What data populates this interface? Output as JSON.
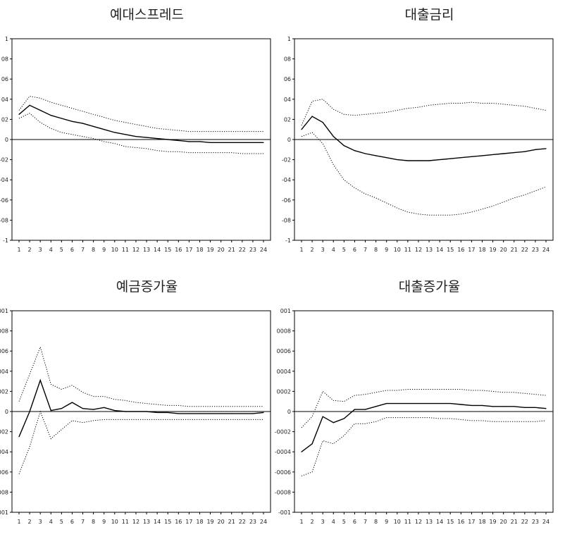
{
  "chart_data": [
    {
      "type": "line",
      "title": "예대스프레드",
      "x": [
        1,
        2,
        3,
        4,
        5,
        6,
        7,
        8,
        9,
        10,
        11,
        12,
        13,
        14,
        15,
        16,
        17,
        18,
        19,
        20,
        21,
        22,
        23,
        24
      ],
      "ylim": [
        -1,
        1
      ],
      "yticks": [
        "1",
        "0.8",
        "0.6",
        "0.4",
        "0.2",
        "0",
        "-0.2",
        "-0.4",
        "-0.6",
        "-0.8",
        "-1"
      ],
      "yticks_display": [
        "1",
        "08",
        "06",
        "04",
        "02",
        "0",
        "-02",
        "-04",
        "-06",
        "-08",
        "-1"
      ],
      "xticks": [
        "1",
        "2",
        "3",
        "4",
        "5",
        "6",
        "7",
        "8",
        "9",
        "10",
        "11",
        "12",
        "13",
        "14",
        "15",
        "16",
        "17",
        "18",
        "19",
        "20",
        "21",
        "22",
        "23",
        "24"
      ],
      "series": [
        {
          "style": "solid",
          "values": [
            0.25,
            0.34,
            0.29,
            0.24,
            0.21,
            0.18,
            0.16,
            0.13,
            0.1,
            0.07,
            0.05,
            0.03,
            0.02,
            0.01,
            0.0,
            -0.01,
            -0.02,
            -0.02,
            -0.03,
            -0.03,
            -0.03,
            -0.03,
            -0.03,
            -0.03
          ]
        },
        {
          "style": "dotted",
          "values": [
            0.29,
            0.43,
            0.41,
            0.37,
            0.34,
            0.31,
            0.28,
            0.25,
            0.22,
            0.19,
            0.17,
            0.15,
            0.13,
            0.11,
            0.1,
            0.09,
            0.08,
            0.08,
            0.08,
            0.08,
            0.08,
            0.08,
            0.08,
            0.08
          ]
        },
        {
          "style": "dotted",
          "values": [
            0.21,
            0.26,
            0.17,
            0.11,
            0.07,
            0.05,
            0.03,
            0.01,
            -0.02,
            -0.04,
            -0.07,
            -0.08,
            -0.09,
            -0.11,
            -0.12,
            -0.12,
            -0.13,
            -0.13,
            -0.13,
            -0.13,
            -0.13,
            -0.14,
            -0.14,
            -0.14
          ]
        }
      ]
    },
    {
      "type": "line",
      "title": "대출금리",
      "x": [
        1,
        2,
        3,
        4,
        5,
        6,
        7,
        8,
        9,
        10,
        11,
        12,
        13,
        14,
        15,
        16,
        17,
        18,
        19,
        20,
        21,
        22,
        23,
        24
      ],
      "ylim": [
        -1,
        1
      ],
      "yticks": [
        "1",
        "0.8",
        "0.6",
        "0.4",
        "0.2",
        "0",
        "-0.2",
        "-0.4",
        "-0.6",
        "-0.8",
        "-1"
      ],
      "yticks_display": [
        "1",
        "08",
        "06",
        "04",
        "02",
        "0",
        "-02",
        "-04",
        "-06",
        "-08",
        "-1"
      ],
      "xticks": [
        "1",
        "2",
        "3",
        "4",
        "5",
        "6",
        "7",
        "8",
        "9",
        "10",
        "11",
        "12",
        "13",
        "14",
        "15",
        "16",
        "17",
        "18",
        "19",
        "20",
        "21",
        "22",
        "23",
        "24"
      ],
      "series": [
        {
          "style": "solid",
          "values": [
            0.1,
            0.23,
            0.17,
            0.03,
            -0.06,
            -0.11,
            -0.14,
            -0.16,
            -0.18,
            -0.2,
            -0.21,
            -0.21,
            -0.21,
            -0.2,
            -0.19,
            -0.18,
            -0.17,
            -0.16,
            -0.15,
            -0.14,
            -0.13,
            -0.12,
            -0.1,
            -0.09
          ]
        },
        {
          "style": "dotted",
          "values": [
            0.14,
            0.38,
            0.4,
            0.3,
            0.25,
            0.24,
            0.25,
            0.26,
            0.27,
            0.29,
            0.31,
            0.32,
            0.34,
            0.35,
            0.36,
            0.36,
            0.37,
            0.36,
            0.36,
            0.35,
            0.34,
            0.33,
            0.31,
            0.29
          ]
        },
        {
          "style": "dotted",
          "values": [
            0.03,
            0.07,
            -0.04,
            -0.25,
            -0.4,
            -0.48,
            -0.54,
            -0.58,
            -0.63,
            -0.68,
            -0.72,
            -0.74,
            -0.75,
            -0.75,
            -0.75,
            -0.74,
            -0.72,
            -0.69,
            -0.66,
            -0.62,
            -0.58,
            -0.55,
            -0.51,
            -0.47
          ]
        }
      ]
    },
    {
      "type": "line",
      "title": "예금증가율",
      "x": [
        1,
        2,
        3,
        4,
        5,
        6,
        7,
        8,
        9,
        10,
        11,
        12,
        13,
        14,
        15,
        16,
        17,
        18,
        19,
        20,
        21,
        22,
        23,
        24
      ],
      "ylim": [
        -0.01,
        0.01
      ],
      "yticks": [
        "0.01",
        "0.008",
        "0.006",
        "0.004",
        "0.002",
        "0",
        "-0.002",
        "-0.004",
        "-0.006",
        "-0.008",
        "-0.01"
      ],
      "yticks_display": [
        "001",
        "0008",
        "0006",
        "0004",
        "0002",
        "0",
        "-0002",
        "-0004",
        "-0006",
        "-0008",
        "-001"
      ],
      "xticks": [
        "1",
        "2",
        "3",
        "4",
        "5",
        "6",
        "7",
        "8",
        "9",
        "10",
        "11",
        "12",
        "13",
        "14",
        "15",
        "16",
        "17",
        "18",
        "19",
        "20",
        "21",
        "22",
        "23",
        "24"
      ],
      "series": [
        {
          "style": "solid",
          "values": [
            -0.0025,
            0.0,
            0.0031,
            0.0001,
            0.0003,
            0.0009,
            0.0003,
            0.0002,
            0.0004,
            0.0001,
            0.0,
            0.0,
            0.0,
            -0.0001,
            -0.0001,
            -0.0002,
            -0.0002,
            -0.0002,
            -0.0002,
            -0.0002,
            -0.0002,
            -0.0002,
            -0.0002,
            -0.0001
          ]
        },
        {
          "style": "dotted",
          "values": [
            0.001,
            0.0037,
            0.0064,
            0.0027,
            0.0022,
            0.0026,
            0.0019,
            0.0015,
            0.0015,
            0.0012,
            0.0011,
            0.0009,
            0.0008,
            0.0007,
            0.0006,
            0.0006,
            0.0005,
            0.0005,
            0.0005,
            0.0005,
            0.0005,
            0.0005,
            0.0005,
            0.0005
          ]
        },
        {
          "style": "dotted",
          "values": [
            -0.0062,
            -0.0035,
            0.0,
            -0.0027,
            -0.0018,
            -0.0009,
            -0.0011,
            -0.0009,
            -0.0008,
            -0.0008,
            -0.0008,
            -0.0008,
            -0.0008,
            -0.0008,
            -0.0008,
            -0.0008,
            -0.0008,
            -0.0008,
            -0.0008,
            -0.0008,
            -0.0008,
            -0.0008,
            -0.0008,
            -0.0008
          ]
        }
      ]
    },
    {
      "type": "line",
      "title": "대출증가율",
      "x": [
        1,
        2,
        3,
        4,
        5,
        6,
        7,
        8,
        9,
        10,
        11,
        12,
        13,
        14,
        15,
        16,
        17,
        18,
        19,
        20,
        21,
        22,
        23,
        24
      ],
      "ylim": [
        -0.01,
        0.01
      ],
      "yticks": [
        "0.01",
        "0.008",
        "0.006",
        "0.004",
        "0.002",
        "0",
        "-0.002",
        "-0.004",
        "-0.006",
        "-0.008",
        "-0.01"
      ],
      "yticks_display": [
        "001",
        "0008",
        "0006",
        "0004",
        "0002",
        "0",
        "-0002",
        "-0004",
        "-0006",
        "-0008",
        "-001"
      ],
      "xticks": [
        "1",
        "2",
        "3",
        "4",
        "5",
        "6",
        "7",
        "8",
        "9",
        "10",
        "11",
        "12",
        "13",
        "14",
        "15",
        "16",
        "17",
        "18",
        "19",
        "20",
        "21",
        "22",
        "23",
        "24"
      ],
      "series": [
        {
          "style": "solid",
          "values": [
            -0.004,
            -0.0032,
            -0.0005,
            -0.0011,
            -0.0007,
            0.0002,
            0.0002,
            0.0005,
            0.0008,
            0.0008,
            0.0008,
            0.0008,
            0.0008,
            0.0008,
            0.0008,
            0.0007,
            0.0006,
            0.0006,
            0.0005,
            0.0005,
            0.0005,
            0.0004,
            0.0004,
            0.0003
          ]
        },
        {
          "style": "dotted",
          "values": [
            -0.0016,
            -0.0005,
            0.002,
            0.0011,
            0.001,
            0.0016,
            0.0017,
            0.0019,
            0.0021,
            0.0021,
            0.0022,
            0.0022,
            0.0022,
            0.0022,
            0.0022,
            0.0022,
            0.0021,
            0.0021,
            0.002,
            0.0019,
            0.0019,
            0.0018,
            0.0017,
            0.0016
          ]
        },
        {
          "style": "dotted",
          "values": [
            -0.0064,
            -0.006,
            -0.0029,
            -0.0032,
            -0.0024,
            -0.0012,
            -0.0012,
            -0.001,
            -0.0006,
            -0.0006,
            -0.0006,
            -0.0006,
            -0.0006,
            -0.0007,
            -0.0007,
            -0.0008,
            -0.0009,
            -0.0009,
            -0.001,
            -0.001,
            -0.001,
            -0.001,
            -0.001,
            -0.0009
          ]
        }
      ]
    }
  ]
}
